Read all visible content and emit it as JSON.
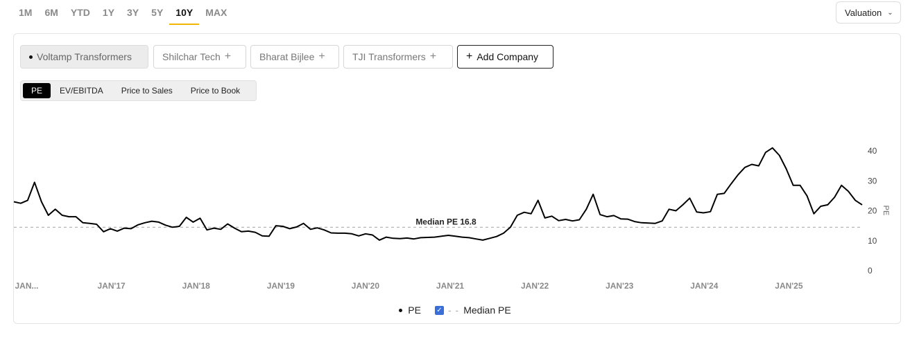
{
  "ranges": [
    {
      "label": "1M",
      "active": false
    },
    {
      "label": "6M",
      "active": false
    },
    {
      "label": "YTD",
      "active": false
    },
    {
      "label": "1Y",
      "active": false
    },
    {
      "label": "3Y",
      "active": false
    },
    {
      "label": "5Y",
      "active": false
    },
    {
      "label": "10Y",
      "active": true
    },
    {
      "label": "MAX",
      "active": false
    }
  ],
  "view_select": {
    "label": "Valuation"
  },
  "companies": {
    "selected": "Voltamp Transformers",
    "others": [
      "Shilchar Tech",
      "Bharat Bijlee",
      "TJI Transformers"
    ],
    "add_label": "Add Company"
  },
  "metrics": {
    "items": [
      "PE",
      "EV/EBITDA",
      "Price to Sales",
      "Price to Book"
    ],
    "active": "PE"
  },
  "legend": {
    "pe": "PE",
    "median": "Median PE"
  },
  "chart_data": {
    "type": "line",
    "ylabel": "PE",
    "ylim": [
      0,
      40
    ],
    "yticks": [
      "0",
      "10",
      "20",
      "30",
      "40"
    ],
    "xtick_labels": [
      "JAN...",
      "JAN'17",
      "JAN'18",
      "JAN'19",
      "JAN'20",
      "JAN'21",
      "JAN'22",
      "JAN'23",
      "JAN'24",
      "JAN'25"
    ],
    "median": {
      "label": "Median PE 16.8",
      "value": 16.8
    },
    "grid": false,
    "series": [
      {
        "name": "PE",
        "color": "#000000",
        "values": [
          23,
          22.5,
          23.5,
          29.5,
          23,
          18.5,
          20.5,
          18.5,
          18,
          18,
          16,
          15.8,
          15.5,
          13,
          14,
          13.2,
          14.2,
          14,
          15.3,
          16,
          16.5,
          16.2,
          15.2,
          14.5,
          14.8,
          17.8,
          16.2,
          17.5,
          13.6,
          14.2,
          13.8,
          15.6,
          14.2,
          13,
          13.2,
          12.8,
          11.6,
          11.5,
          15,
          14.8,
          14,
          14.6,
          15.8,
          13.8,
          14.3,
          13.6,
          12.6,
          12.5,
          12.5,
          12.3,
          11.6,
          12.3,
          11.9,
          10.2,
          11.2,
          10.8,
          10.7,
          10.9,
          10.6,
          11,
          11.1,
          11.2,
          11.5,
          11.8,
          11.5,
          11.2,
          11,
          10.6,
          10.2,
          10.8,
          11.4,
          12.5,
          14.5,
          18.5,
          19.5,
          19,
          23.5,
          17.6,
          18.2,
          16.7,
          17.1,
          16.6,
          17,
          20.5,
          25.5,
          18.7,
          18,
          18.4,
          17.3,
          17.2,
          16.4,
          16,
          15.9,
          15.8,
          16.6,
          20.5,
          20,
          22,
          24.2,
          19.6,
          19.3,
          19.7,
          25.5,
          25.8,
          29,
          32,
          34.5,
          35.5,
          35,
          39.5,
          41,
          38.5,
          34,
          28.5,
          28.5,
          25,
          19,
          21.5,
          22,
          24.5,
          28.5,
          26.5,
          23.5,
          22
        ]
      }
    ]
  }
}
